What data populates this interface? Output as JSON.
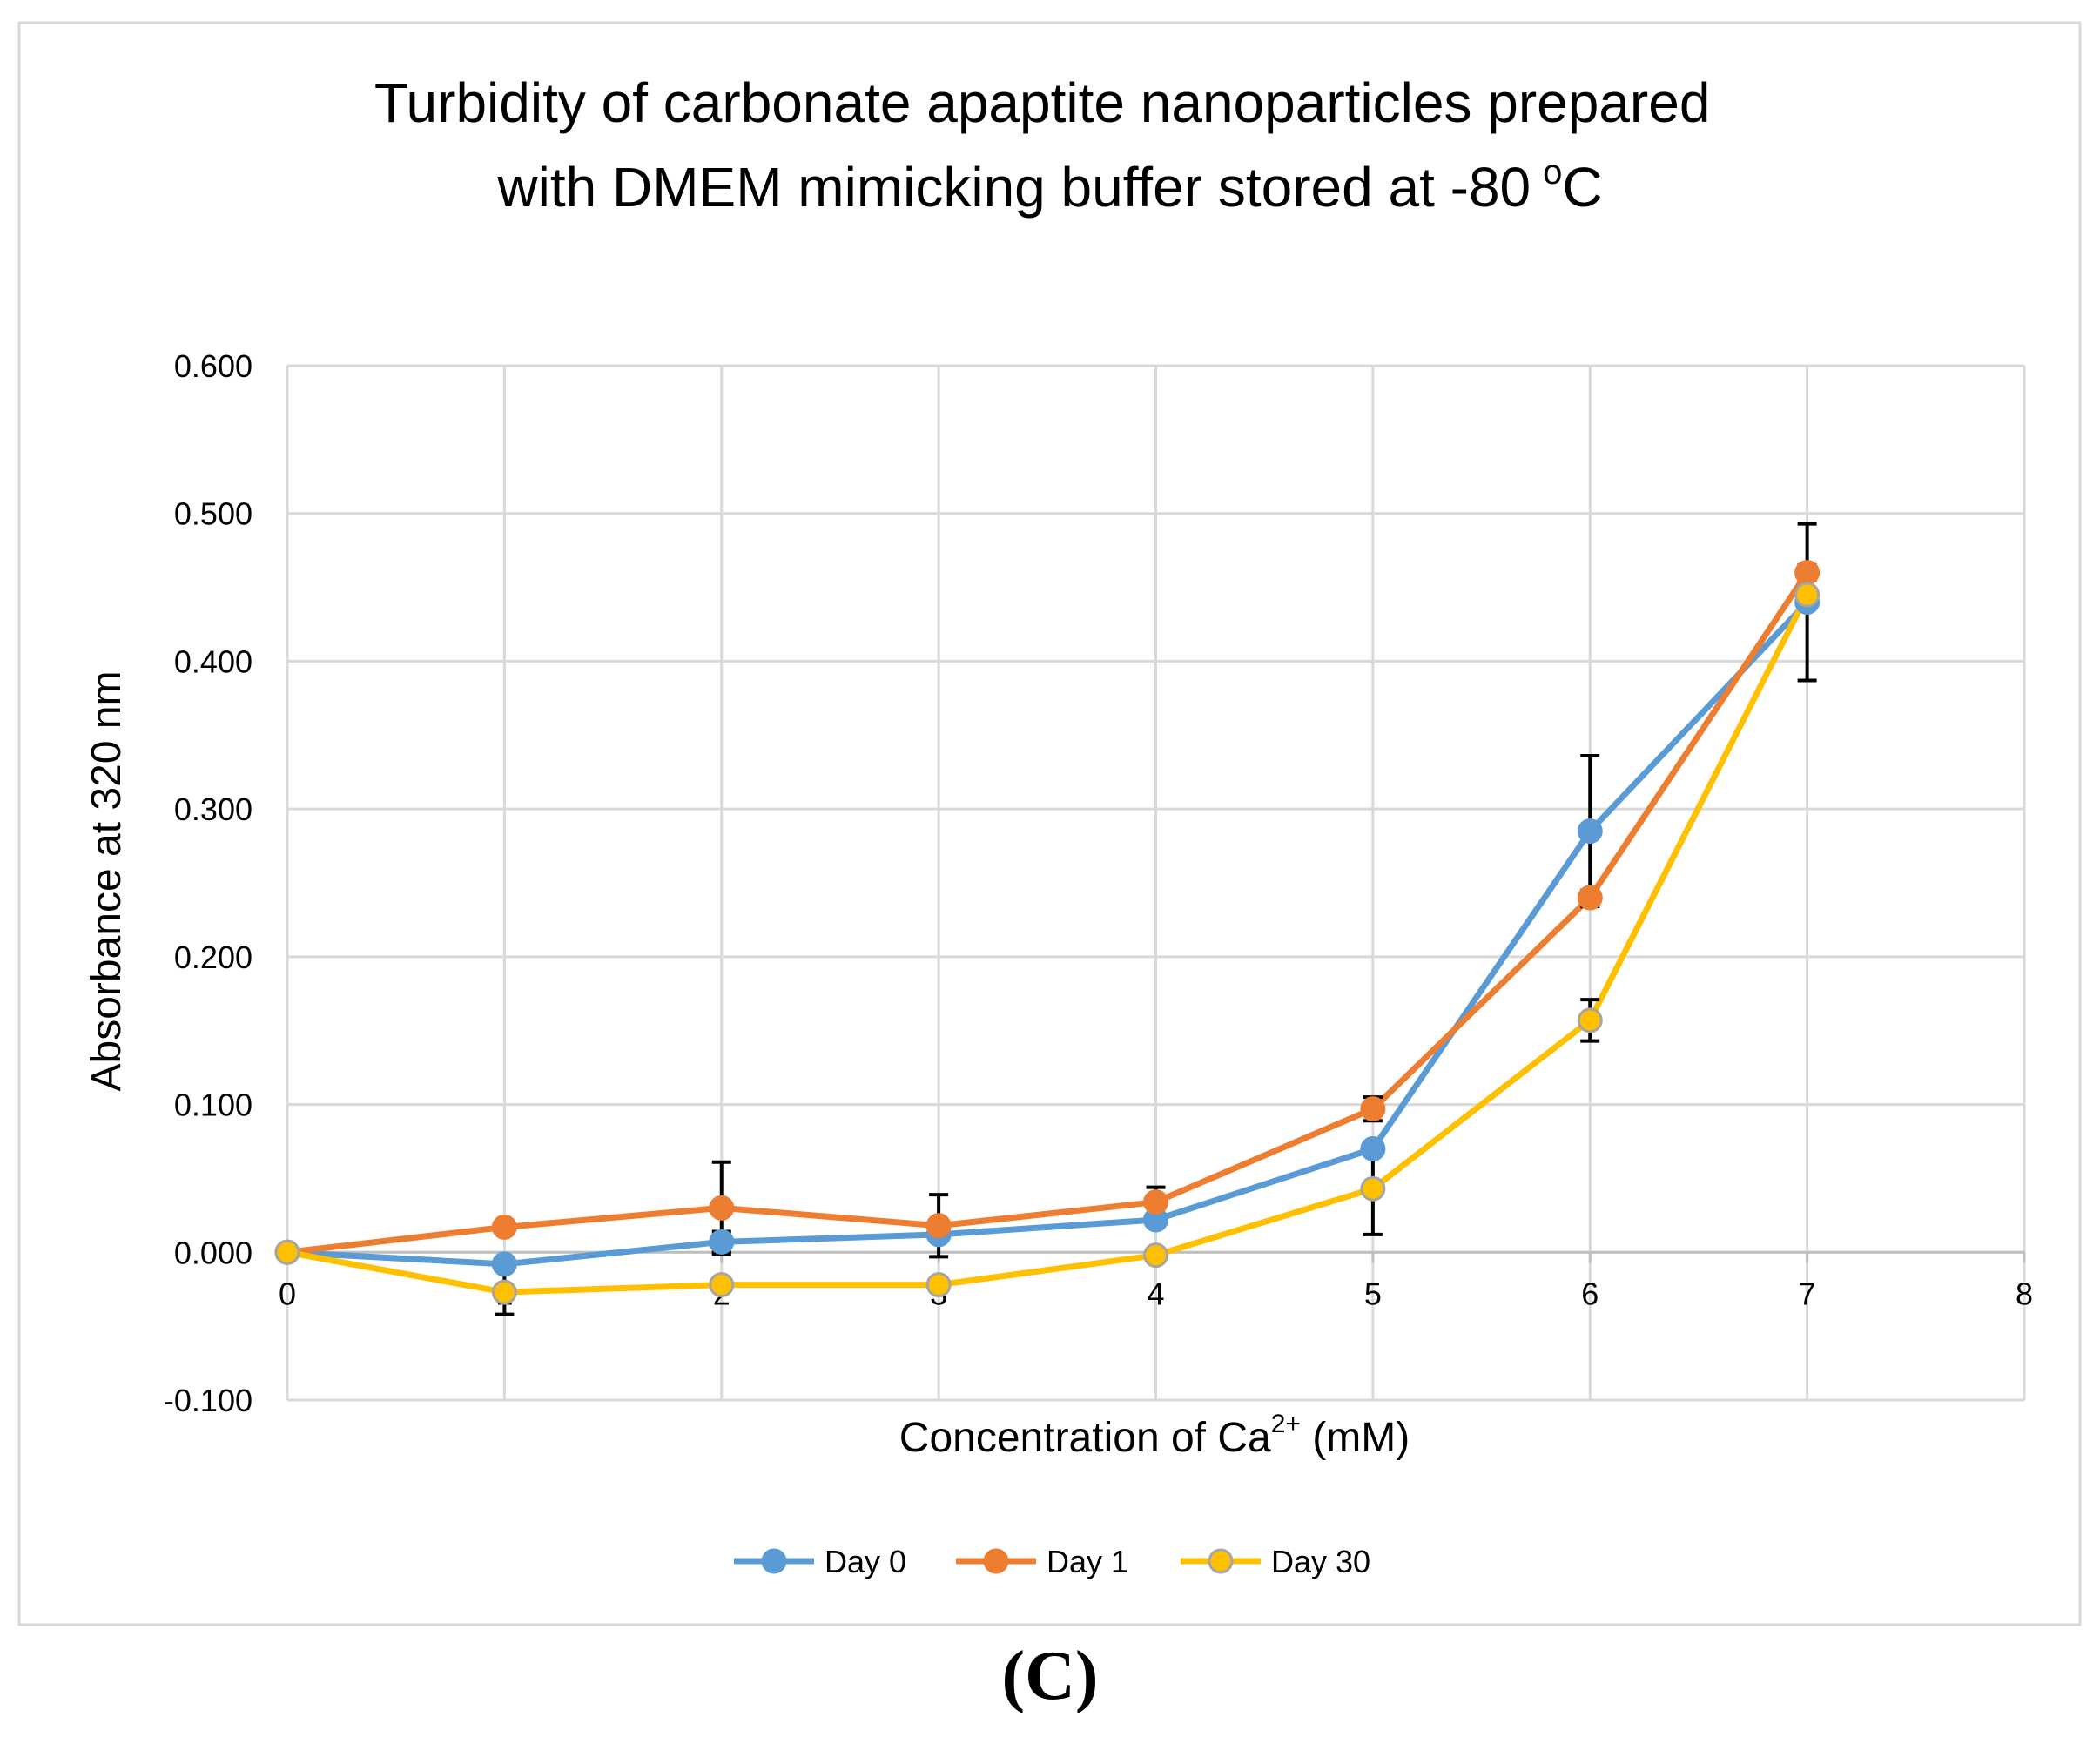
{
  "panel_label": "(C)",
  "colors": {
    "day0": "#5B9BD5",
    "day1": "#ED7D31",
    "day30": "#FFC000",
    "day30_marker_edge": "#A5A5A5",
    "grid": "#D9D9D9",
    "error_bar": "#000000"
  },
  "chart_data": {
    "type": "line",
    "title_lines": [
      "Turbidity of carbonate apaptite nanoparticles prepared",
      "with DMEM mimicking buffer stored at -80"
    ],
    "title_degree": "o",
    "title_unit": "C",
    "xlabel_prefix": "Concentration of Ca",
    "xlabel_superscript": "2+",
    "xlabel_suffix": " (mM)",
    "ylabel": "Absorbance at 320 nm",
    "xlim": [
      0,
      8
    ],
    "ylim": [
      -0.1,
      0.6
    ],
    "x_ticks": [
      "0",
      "1",
      "2",
      "3",
      "4",
      "5",
      "6",
      "7",
      "8"
    ],
    "y_ticks": [
      "-0.100",
      "0.000",
      "0.100",
      "0.200",
      "0.300",
      "0.400",
      "0.500",
      "0.600"
    ],
    "grid": true,
    "legend_position": "bottom",
    "x": [
      0,
      1,
      2,
      3,
      4,
      5,
      6,
      7
    ],
    "series": [
      {
        "name": "Day 0",
        "values": [
          0.0,
          -0.008,
          0.007,
          0.012,
          0.022,
          0.07,
          0.285,
          0.44
        ],
        "errors": [
          0,
          0,
          0.007,
          0,
          0,
          0,
          0.051,
          0.053
        ]
      },
      {
        "name": "Day 1",
        "values": [
          0.0,
          0.017,
          0.03,
          0.018,
          0.034,
          0.097,
          0.24,
          0.46
        ],
        "errors": [
          0,
          0,
          0.031,
          0.021,
          0.01,
          0.008,
          0.005,
          0.005
        ]
      },
      {
        "name": "Day 30",
        "values": [
          0.0,
          -0.027,
          -0.022,
          -0.022,
          -0.002,
          0.043,
          0.157,
          0.445
        ],
        "errors": [
          0,
          0.015,
          0,
          0,
          0,
          0.031,
          0.014,
          0
        ]
      }
    ]
  }
}
